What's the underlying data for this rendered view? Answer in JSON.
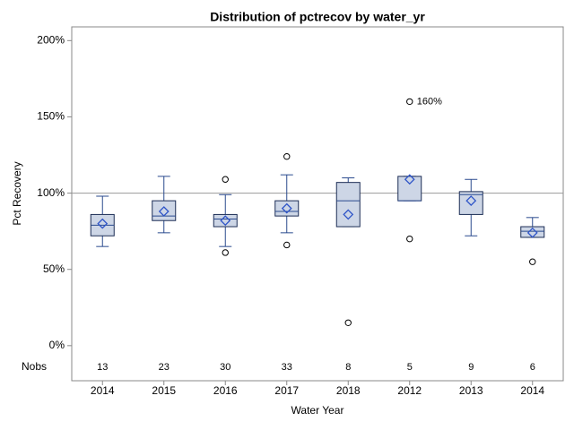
{
  "chart_data": {
    "type": "box",
    "title": "Distribution of pctrecov by water_yr",
    "xlabel": "Water Year",
    "ylabel": "Pct Recovery",
    "categories": [
      "2014",
      "2015",
      "2016",
      "2017",
      "2018",
      "2012",
      "2013",
      "2014"
    ],
    "min": [
      65,
      74,
      65,
      74,
      78,
      95,
      72,
      71
    ],
    "q1": [
      72,
      82,
      78,
      85,
      78,
      95,
      86,
      71
    ],
    "median": [
      79,
      85,
      83,
      88,
      95,
      95,
      99,
      75
    ],
    "q3": [
      86,
      95,
      86,
      95,
      107,
      111,
      101,
      78
    ],
    "max": [
      98,
      111,
      99,
      112,
      110,
      111,
      109,
      84
    ],
    "mean": [
      80,
      88,
      82,
      90,
      86,
      109,
      95,
      74
    ],
    "outliers": [
      [],
      [],
      [
        109,
        61
      ],
      [
        124,
        66
      ],
      [
        15
      ],
      [
        160,
        70
      ],
      [],
      [
        55
      ]
    ],
    "annotation": {
      "text": "160%",
      "category": "2012",
      "value": 160
    },
    "nobs_label": "Nobs",
    "nobs": [
      13,
      23,
      30,
      33,
      8,
      5,
      9,
      6
    ],
    "refline": 100,
    "ylim": [
      -23,
      209
    ],
    "yticks": [
      {
        "value": 0,
        "label": "0%"
      },
      {
        "value": 50,
        "label": "50%"
      },
      {
        "value": 100,
        "label": "100%"
      },
      {
        "value": 150,
        "label": "150%"
      },
      {
        "value": 200,
        "label": "200%"
      }
    ],
    "box_color": "#cdd6e6",
    "line_color": "#2a4a8e",
    "mean_color": "#2f55c8"
  }
}
